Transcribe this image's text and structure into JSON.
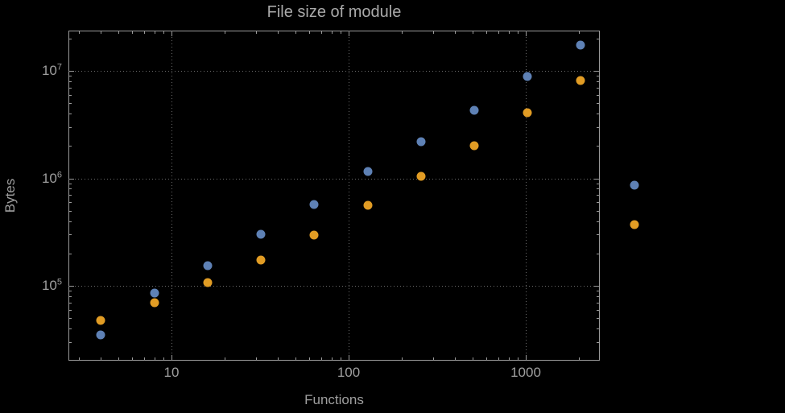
{
  "title": "File size of module",
  "colors": {
    "background": "#000000",
    "title_text": "#a9a9a9",
    "label_text": "#9f9f9f",
    "frame": "#9a9a9a",
    "grid": "#6c6c6c",
    "point_blue": "#5e81b5",
    "point_orange": "#e19c24"
  },
  "chart_data": {
    "type": "scatter",
    "title": "File size of module",
    "xlabel": "Functions",
    "ylabel": "Bytes",
    "x_scale": "log",
    "y_scale": "log",
    "xlim": [
      2.6,
      2650
    ],
    "ylim": [
      22000,
      27500000
    ],
    "grid": "dotted gridlines at powers of 10",
    "legend": "none",
    "x": [
      4,
      8,
      16,
      32,
      64,
      128,
      256,
      512,
      1024,
      2048,
      4096
    ],
    "series": [
      {
        "name": "blue",
        "color": "#5e81b5",
        "values": [
          35000,
          85000,
          155000,
          300000,
          570000,
          1150000,
          2200000,
          4300000,
          8800000,
          17500000,
          870000
        ]
      },
      {
        "name": "orange",
        "color": "#e19c24",
        "values": [
          48000,
          70000,
          108000,
          175000,
          295000,
          560000,
          1050000,
          2000000,
          4100000,
          8200000,
          370000
        ]
      }
    ],
    "x_ticks": [
      {
        "value": 10,
        "label": "10"
      },
      {
        "value": 100,
        "label": "100"
      },
      {
        "value": 1000,
        "label": "1000"
      }
    ],
    "y_ticks": [
      {
        "value": 100000,
        "label_base": "10",
        "label_exp": "5"
      },
      {
        "value": 1000000,
        "label_base": "10",
        "label_exp": "6"
      },
      {
        "value": 10000000,
        "label_base": "10",
        "label_exp": "7"
      }
    ]
  }
}
